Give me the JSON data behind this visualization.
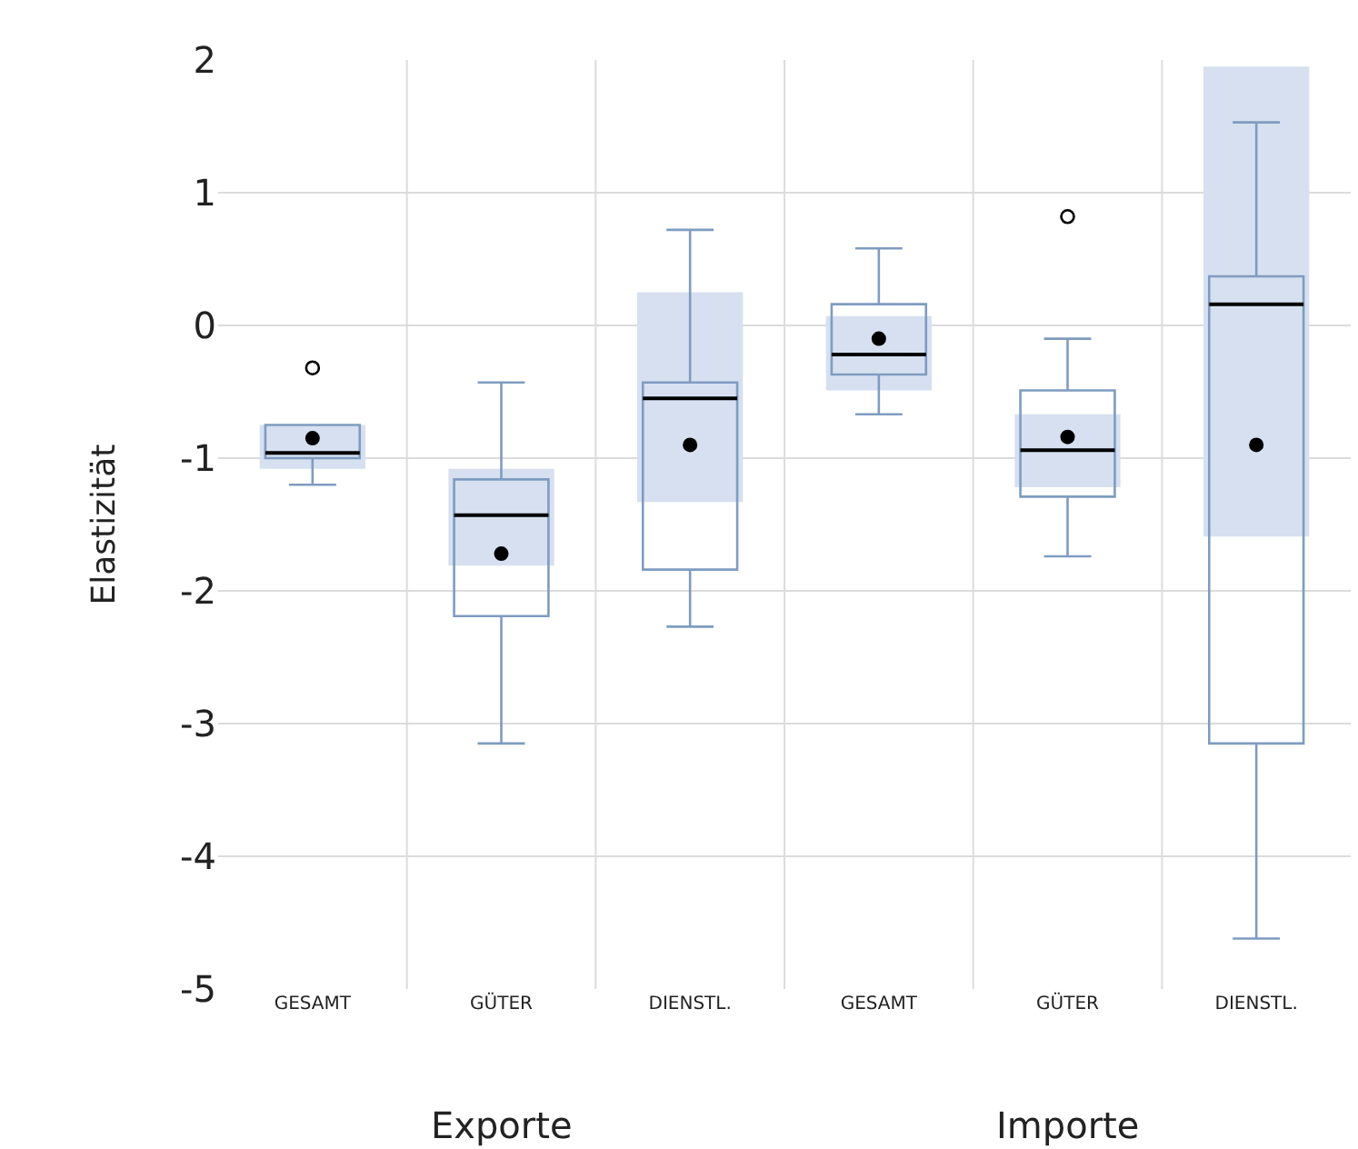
{
  "chart_data": {
    "type": "box",
    "ylabel": "Elastizität",
    "categories": [
      "GESAMT",
      "GÜTER",
      "DIENSTL.",
      "GESAMT",
      "GÜTER",
      "DIENSTL."
    ],
    "annotations": [
      "Exporte",
      "Importe"
    ],
    "ylim": [
      -5,
      2
    ],
    "yticks": [
      -5,
      -4,
      -3,
      -2,
      -1,
      0,
      1,
      2
    ],
    "grid": true,
    "series": [
      {
        "type": "bar",
        "color": "#d6e0f0",
        "base": [
          -1.08,
          -1.81,
          -1.33,
          -0.49,
          -1.22,
          -1.59
        ],
        "values": [
          0.33,
          0.73,
          1.58,
          0.56,
          0.55,
          3.54
        ]
      },
      {
        "color": "#7f9cc0",
        "boxes": [
          {
            "low": -1.2,
            "q1": -1.0,
            "median": -0.96,
            "q3": -0.75,
            "high": -0.75,
            "mean": -0.85,
            "outliers": [
              -0.32
            ]
          },
          {
            "low": -3.15,
            "q1": -2.19,
            "median": -1.43,
            "q3": -1.16,
            "high": -0.43,
            "mean": -1.72
          },
          {
            "low": -2.27,
            "q1": -1.84,
            "median": -0.55,
            "q3": -0.43,
            "high": 0.72,
            "mean": -0.9
          },
          {
            "low": -0.67,
            "q1": -0.37,
            "median": -0.22,
            "q3": 0.16,
            "high": 0.58,
            "mean": -0.1
          },
          {
            "low": -1.74,
            "q1": -1.29,
            "median": -0.94,
            "q3": -0.49,
            "high": -0.1,
            "mean": -0.84,
            "outliers": [
              0.82
            ]
          },
          {
            "low": -4.62,
            "q1": -3.15,
            "median": 0.16,
            "q3": 0.37,
            "high": 1.53,
            "mean": -0.9
          }
        ]
      }
    ]
  }
}
